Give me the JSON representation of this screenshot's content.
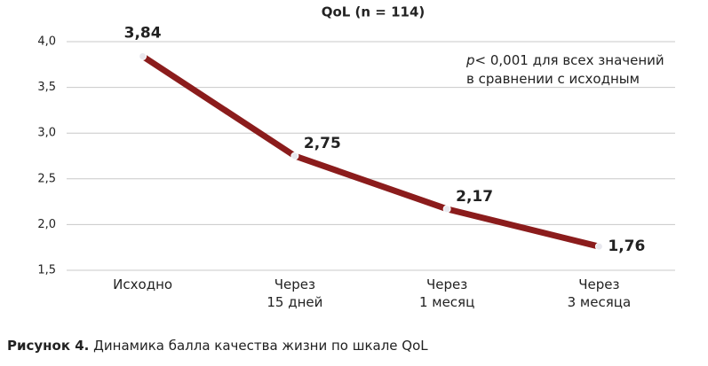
{
  "chart_data": {
    "type": "line",
    "title": "QoL (n = 114)",
    "categories": [
      "Исходно",
      "Через\n15 дней",
      "Через\n1 месяц",
      "Через\n3 месяца"
    ],
    "values": [
      3.84,
      2.75,
      2.17,
      1.76
    ],
    "value_labels": [
      "3,84",
      "2,75",
      "2,17",
      "1,76"
    ],
    "color": "#8b1c1c",
    "ylim": [
      1.5,
      4.0
    ],
    "yticks": [
      {
        "value": 1.5,
        "label": "1,5"
      },
      {
        "value": 2.0,
        "label": "2,0"
      },
      {
        "value": 2.5,
        "label": "2,5"
      },
      {
        "value": 3.0,
        "label": "3,0"
      },
      {
        "value": 3.5,
        "label": "3,5"
      },
      {
        "value": 4.0,
        "label": "4,0"
      }
    ],
    "grid": true,
    "annotation": {
      "italic": "p",
      "text": "< 0,001 для всех значений\nв сравнении с исходным"
    }
  },
  "figure_caption": {
    "label": "Рисунок 4.",
    "text": "Динамика балла качества жизни по шкале QoL"
  }
}
